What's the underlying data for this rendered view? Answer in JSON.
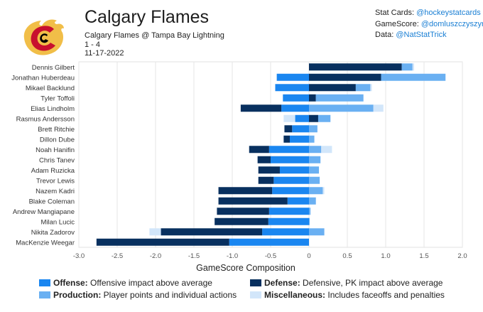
{
  "header": {
    "team": "Calgary Flames",
    "matchup": "Calgary Flames @ Tampa Bay Lightning",
    "score": "1 - 4",
    "date": "11-17-2022"
  },
  "credits": [
    {
      "label": "Stat Cards:",
      "handle": "@hockeystatcards"
    },
    {
      "label": "GameScore:",
      "handle": "@domluszczyszyn"
    },
    {
      "label": "Data:",
      "handle": "@NatStatTrick"
    }
  ],
  "colors": {
    "offense": "#1a86f0",
    "defense": "#08305f",
    "production": "#6ab0f2",
    "misc": "#d2e6fa",
    "logo_red": "#c8102e",
    "logo_gold": "#f1be48"
  },
  "legend": [
    {
      "key": "offense",
      "name": "Offense:",
      "desc": "Offensive impact above average"
    },
    {
      "key": "defense",
      "name": "Defense:",
      "desc": "Defensive, PK impact above average"
    },
    {
      "key": "production",
      "name": "Production:",
      "desc": "Player points and individual actions"
    },
    {
      "key": "misc",
      "name": "Miscellaneous:",
      "desc": "Includes faceoffs and penalties"
    }
  ],
  "chart_data": {
    "type": "bar",
    "orientation": "horizontal",
    "stacked": true,
    "xlabel": "GameScore Composition",
    "xlim": [
      -3.0,
      2.0
    ],
    "xticks": [
      -3.0,
      -2.5,
      -2.0,
      -1.5,
      -1.0,
      -0.5,
      0,
      0.5,
      1.0,
      1.5,
      2.0
    ],
    "xtick_labels": [
      "-3.0",
      "-2.5",
      "-2.0",
      "-1.5",
      "-1.0",
      "-0.5",
      "0",
      "0.5",
      "1.0",
      "1.5",
      "2.0"
    ],
    "grid": true,
    "categories": [
      "Dennis Gilbert",
      "Jonathan Huberdeau",
      "Mikael Backlund",
      "Tyler Toffoli",
      "Elias Lindholm",
      "Rasmus Andersson",
      "Brett Ritchie",
      "Dillon Dube",
      "Noah Hanifin",
      "Chris Tanev",
      "Adam Ruzicka",
      "Trevor Lewis",
      "Nazem Kadri",
      "Blake Coleman",
      "Andrew Mangiapane",
      "Milan Lucic",
      "Nikita Zadorov",
      "MacKenzie Weegar"
    ],
    "series": [
      {
        "key": "offense",
        "name": "Offense",
        "values": [
          0,
          -0.42,
          -0.44,
          -0.34,
          -0.36,
          -0.18,
          -0.22,
          -0.25,
          -0.52,
          -0.5,
          -0.38,
          -0.46,
          -0.48,
          -0.28,
          -0.52,
          -0.53,
          -0.61,
          -1.04
        ]
      },
      {
        "key": "defense",
        "name": "Defense",
        "values": [
          1.21,
          0.94,
          0.61,
          0.09,
          -0.53,
          0.12,
          -0.1,
          -0.08,
          -0.26,
          -0.17,
          -0.28,
          -0.2,
          -0.7,
          -0.9,
          -0.68,
          -0.7,
          -1.32,
          -1.73
        ]
      },
      {
        "key": "production",
        "name": "Production",
        "values": [
          0.14,
          0.84,
          0.19,
          0.62,
          0.84,
          0.16,
          0.11,
          0.07,
          0.16,
          0.15,
          0.13,
          0.14,
          0.18,
          0.09,
          0.02,
          0.01,
          0.2,
          0
        ]
      },
      {
        "key": "misc",
        "name": "Miscellaneous",
        "values": [
          0.02,
          0,
          0.02,
          0,
          0.13,
          -0.15,
          0,
          0,
          0.14,
          0,
          0,
          0,
          0.02,
          0,
          0,
          0,
          -0.15,
          0
        ]
      }
    ]
  }
}
